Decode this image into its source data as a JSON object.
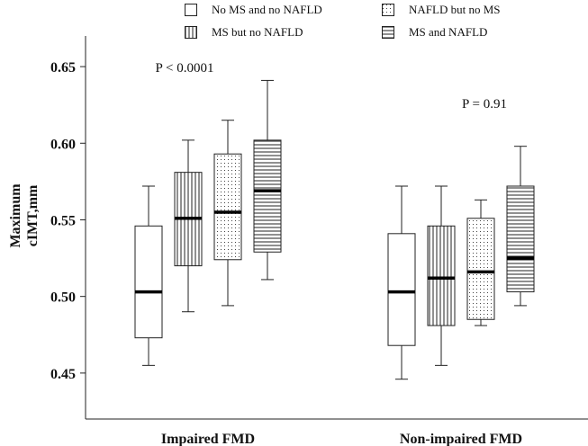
{
  "legend": [
    {
      "label": "No MS and no NAFLD",
      "pattern": "none"
    },
    {
      "label": "NAFLD but no MS",
      "pattern": "dots"
    },
    {
      "label": "MS but no NAFLD",
      "pattern": "vertical"
    },
    {
      "label": "MS and NAFLD",
      "pattern": "horizontal"
    }
  ],
  "chart_data": {
    "type": "box",
    "ylabel_line1": "Maximum",
    "ylabel_line2": "cIMT,mm",
    "ylim": [
      0.42,
      0.67
    ],
    "yticks": [
      "0.45",
      "0.50",
      "0.55",
      "0.60",
      "0.65"
    ],
    "ytick_values": [
      0.45,
      0.5,
      0.55,
      0.6,
      0.65
    ],
    "groups": [
      {
        "label": "Impaired FMD",
        "pvalue": "P < 0.0001",
        "boxes": [
          {
            "series": "No MS and no NAFLD",
            "pattern": "none",
            "min": 0.455,
            "q1": 0.473,
            "median": 0.503,
            "q3": 0.546,
            "max": 0.572
          },
          {
            "series": "MS but no NAFLD",
            "pattern": "vertical",
            "min": 0.49,
            "q1": 0.52,
            "median": 0.551,
            "q3": 0.581,
            "max": 0.602
          },
          {
            "series": "NAFLD but no MS",
            "pattern": "dots",
            "min": 0.494,
            "q1": 0.524,
            "median": 0.555,
            "q3": 0.593,
            "max": 0.615
          },
          {
            "series": "MS and NAFLD",
            "pattern": "horizontal",
            "min": 0.511,
            "q1": 0.529,
            "median": 0.569,
            "q3": 0.602,
            "max": 0.641
          }
        ]
      },
      {
        "label": "Non-impaired FMD",
        "pvalue": "P = 0.91",
        "boxes": [
          {
            "series": "No MS and no NAFLD",
            "pattern": "none",
            "min": 0.446,
            "q1": 0.468,
            "median": 0.503,
            "q3": 0.541,
            "max": 0.572
          },
          {
            "series": "MS but no NAFLD",
            "pattern": "vertical",
            "min": 0.455,
            "q1": 0.481,
            "median": 0.512,
            "q3": 0.546,
            "max": 0.572
          },
          {
            "series": "NAFLD but no MS",
            "pattern": "dots",
            "min": 0.481,
            "q1": 0.485,
            "median": 0.516,
            "q3": 0.551,
            "max": 0.563
          },
          {
            "series": "MS and NAFLD",
            "pattern": "horizontal",
            "min": 0.494,
            "q1": 0.503,
            "median": 0.525,
            "q3": 0.572,
            "max": 0.598
          }
        ]
      }
    ]
  }
}
